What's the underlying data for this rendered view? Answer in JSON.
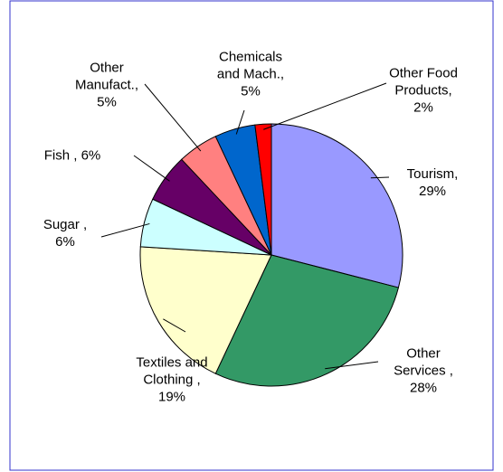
{
  "chart_data": {
    "type": "pie",
    "categories": [
      "Tourism,",
      "Other Services ,",
      "Textiles and Clothing ,",
      "Sugar ,",
      "Fish ,",
      "Other Manufact.,",
      "Chemicals and Mach.,",
      "Other Food Products,"
    ],
    "values": [
      29,
      28,
      19,
      6,
      6,
      5,
      5,
      2
    ],
    "value_labels": [
      "29%",
      "28%",
      "19%",
      "6%",
      "6%",
      "5%",
      "5%",
      "2%"
    ],
    "colors": [
      "#9999ff",
      "#339966",
      "#ffffcc",
      "#ccffff",
      "#660066",
      "#ff8080",
      "#0066cc",
      "#ff0000"
    ]
  }
}
